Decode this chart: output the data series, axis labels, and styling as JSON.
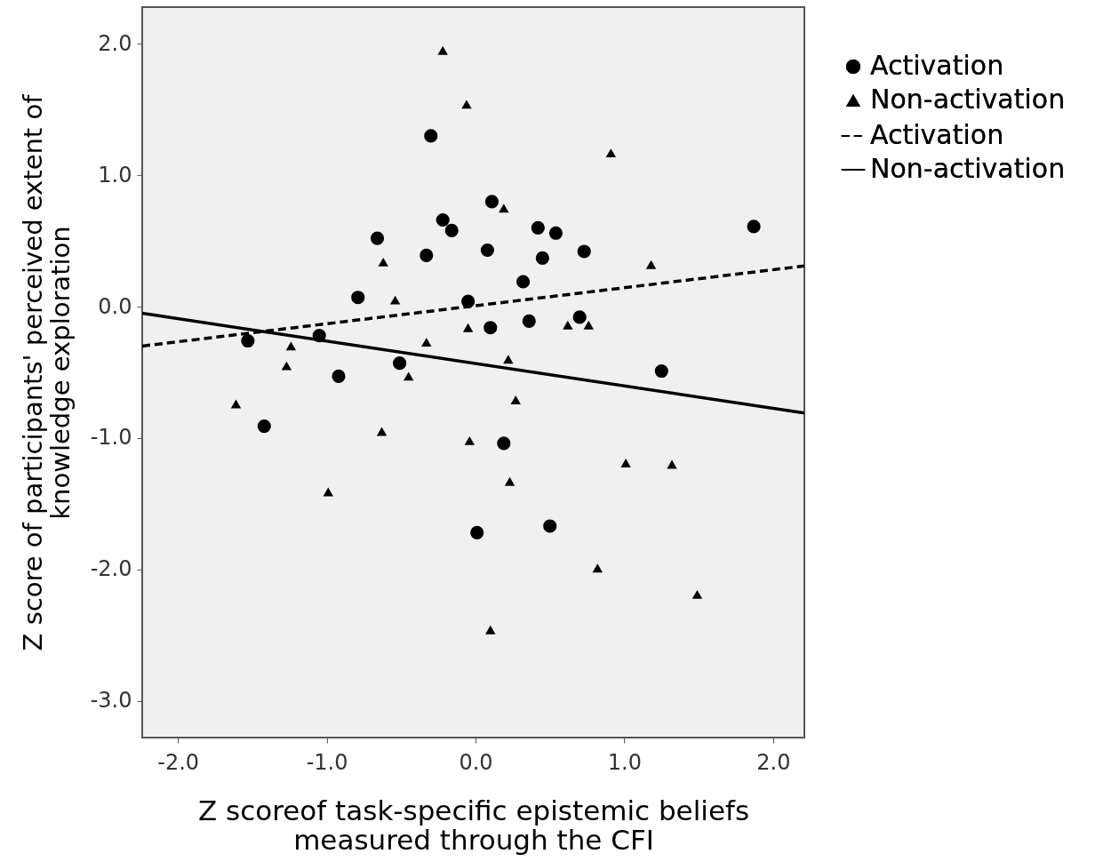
{
  "chart_data": {
    "type": "scatter",
    "xlabel": "Z scoreof task-specific epistemic beliefs\nmeasured through the CFI",
    "ylabel": "Z score of participants' perceived extent of\nknowledge exploration",
    "xlim": [
      -2.24,
      2.21
    ],
    "ylim": [
      -3.28,
      2.28
    ],
    "xticks": [
      {
        "value": -2,
        "label": "-2.0"
      },
      {
        "value": -1,
        "label": "-1.0"
      },
      {
        "value": 0,
        "label": "0.0"
      },
      {
        "value": 1,
        "label": "1.0"
      },
      {
        "value": 2,
        "label": "2.0"
      }
    ],
    "yticks": [
      {
        "value": -3,
        "label": "-3.0"
      },
      {
        "value": -2,
        "label": "-2.0"
      },
      {
        "value": -1,
        "label": "-1.0"
      },
      {
        "value": 0,
        "label": "0.0"
      },
      {
        "value": 1,
        "label": "1.0"
      },
      {
        "value": 2,
        "label": "2.0"
      }
    ],
    "grid": false,
    "legend": "top right",
    "series": [
      {
        "name": "Activation",
        "marker": "circle",
        "color": "#000000",
        "x": [
          -0.3,
          -0.22,
          -0.16,
          -0.66,
          -0.33,
          -0.79,
          -0.05,
          -1.53,
          -1.05,
          -0.51,
          -0.92,
          -1.42,
          0.01,
          0.11,
          0.42,
          0.54,
          0.08,
          0.45,
          0.73,
          1.87,
          0.32,
          0.1,
          0.36,
          0.7,
          1.25,
          0.19,
          0.5
        ],
        "values": [
          1.3,
          0.66,
          0.58,
          0.52,
          0.39,
          0.07,
          0.04,
          -0.26,
          -0.22,
          -0.43,
          -0.53,
          -0.91,
          -1.72,
          0.8,
          0.6,
          0.56,
          0.43,
          0.37,
          0.42,
          0.61,
          0.19,
          -0.16,
          -0.11,
          -0.08,
          -0.49,
          -1.04,
          -1.67
        ]
      },
      {
        "name": "Non-activation",
        "marker": "triangle",
        "color": "#000000",
        "x": [
          -0.22,
          -0.06,
          -0.62,
          -0.54,
          -0.05,
          -1.24,
          -0.33,
          -1.27,
          -0.45,
          -1.61,
          -0.63,
          -0.04,
          -0.99,
          0.91,
          0.19,
          1.18,
          0.62,
          0.76,
          0.22,
          0.27,
          1.01,
          1.32,
          0.23,
          0.82,
          1.49,
          0.1
        ],
        "values": [
          1.95,
          1.54,
          0.34,
          0.05,
          -0.16,
          -0.3,
          -0.27,
          -0.45,
          -0.53,
          -0.74,
          -0.95,
          -1.02,
          -1.41,
          1.17,
          0.75,
          0.32,
          -0.14,
          -0.14,
          -0.4,
          -0.71,
          -1.19,
          -1.2,
          -1.33,
          -1.99,
          -2.19,
          -2.46
        ]
      },
      {
        "name": "Activation",
        "type": "line",
        "line_style": "dashed",
        "color": "#000000",
        "x": [
          -2.24,
          2.21
        ],
        "values": [
          -0.3,
          0.31
        ]
      },
      {
        "name": "Non-activation",
        "type": "line",
        "line_style": "solid",
        "color": "#000000",
        "x": [
          -2.24,
          2.21
        ],
        "values": [
          -0.05,
          -0.81
        ]
      }
    ]
  }
}
